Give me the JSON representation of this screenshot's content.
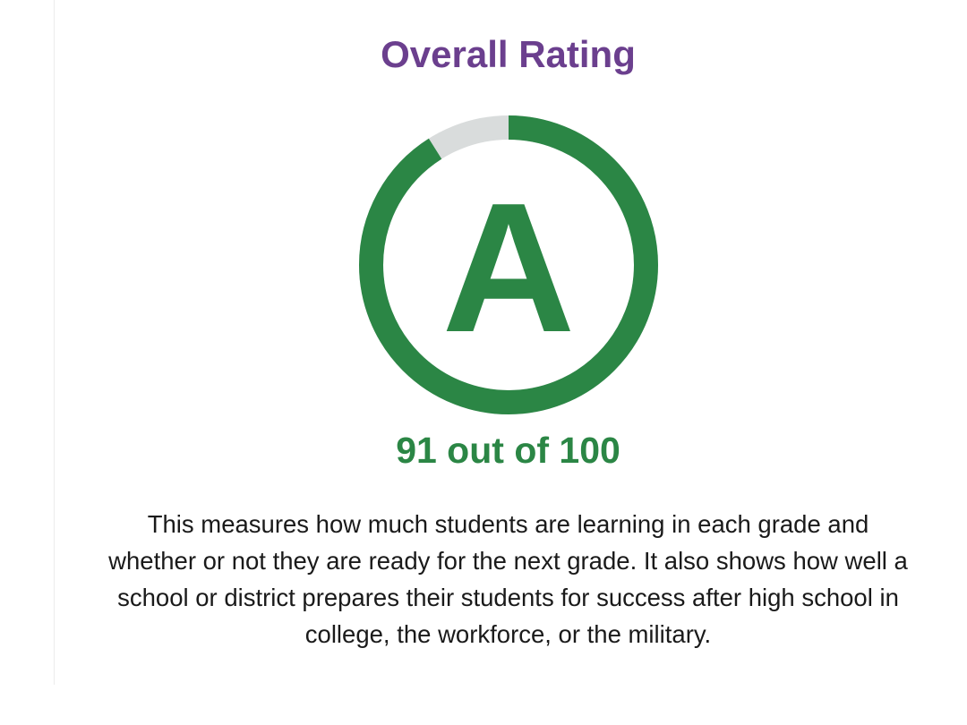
{
  "rating": {
    "title": "Overall Rating",
    "grade": "A",
    "score": 91,
    "max_score": 100,
    "score_text": "91 out of 100",
    "description": "This measures how much students are learning in each grade and whether or not they are ready for the next grade. It also shows how well a school or district prepares their students for success after high school in college, the workforce, or the military."
  },
  "colors": {
    "title": "#6b3f8e",
    "gauge_fill": "#2b8645",
    "gauge_track": "#d9dcdc",
    "score": "#2b8645",
    "text": "#1a1a1a"
  },
  "icons": {
    "gauge": "progress-ring-icon"
  }
}
